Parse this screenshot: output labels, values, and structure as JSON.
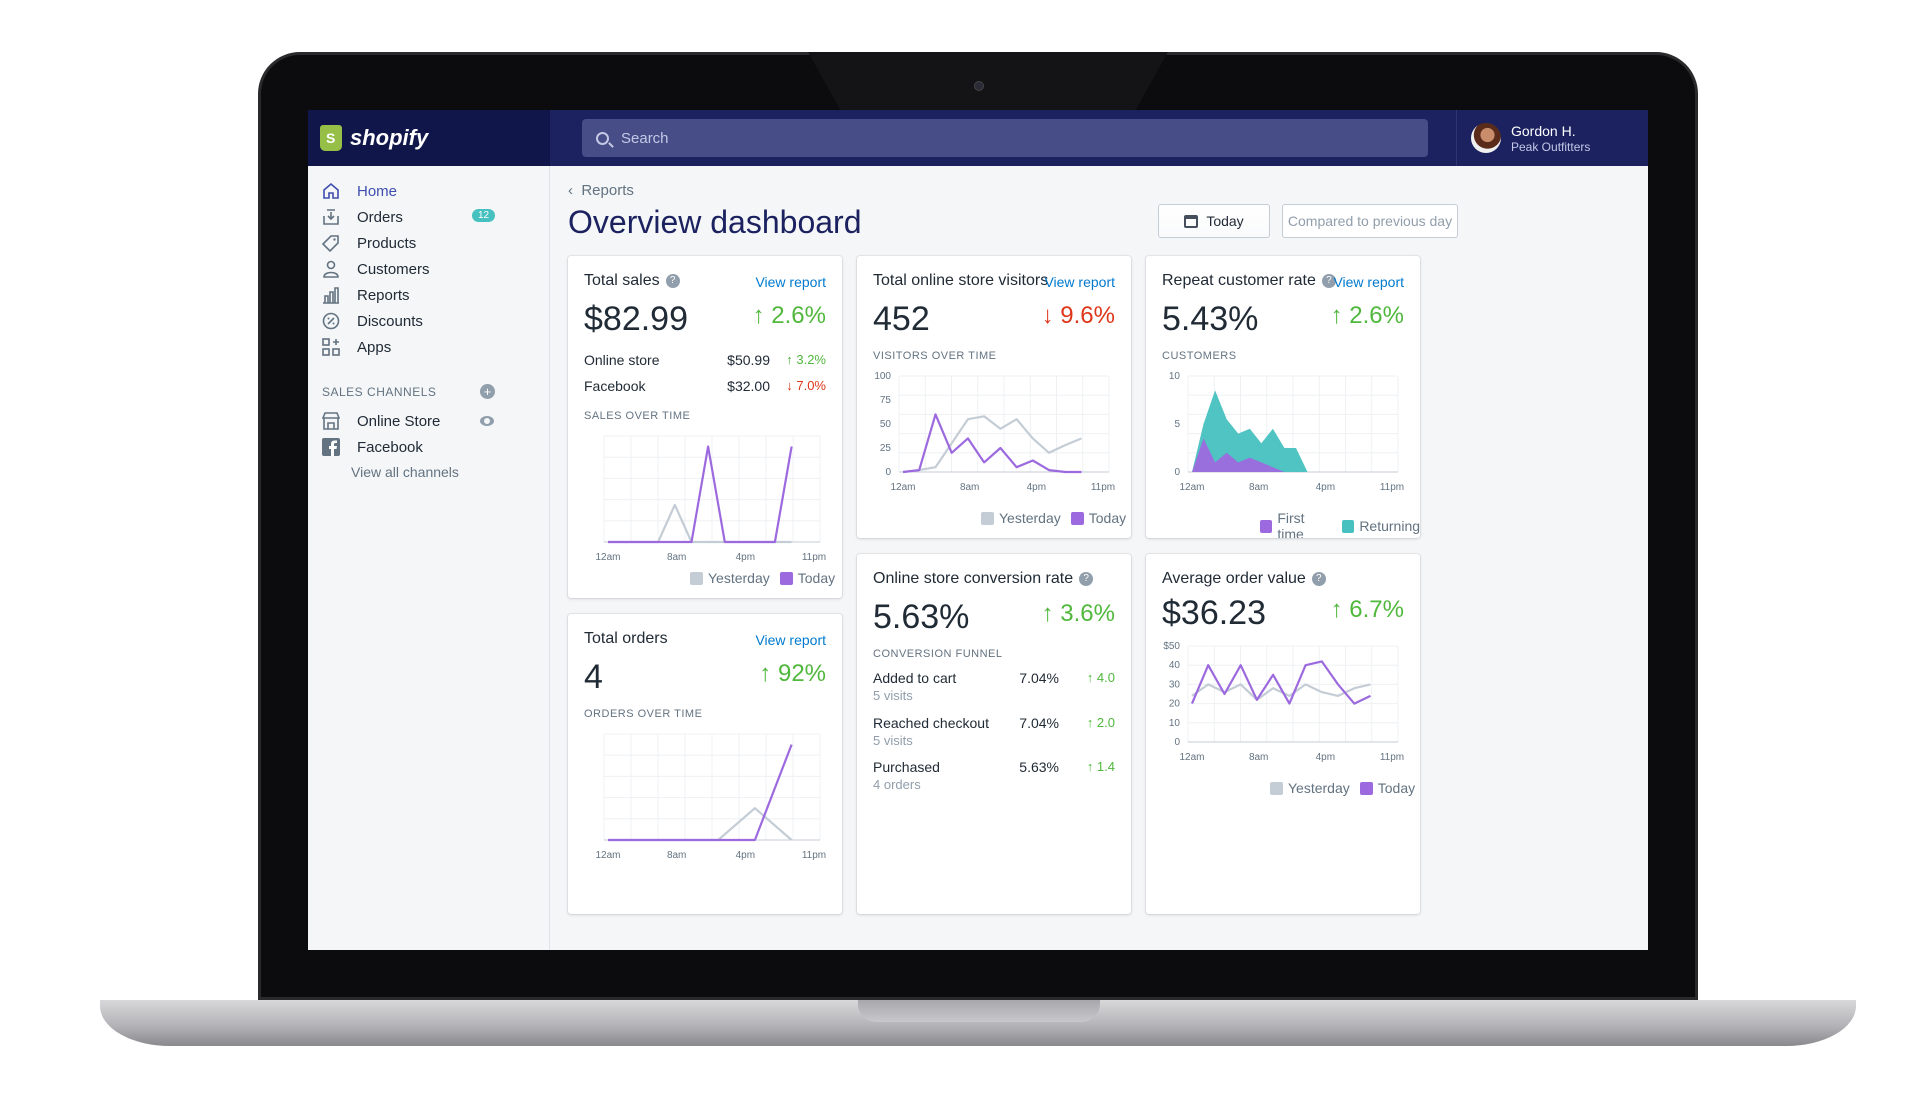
{
  "brand": {
    "name": "shopify"
  },
  "search": {
    "placeholder": "Search"
  },
  "user": {
    "name": "Gordon H.",
    "store": "Peak Outfitters"
  },
  "sidebar": {
    "items": [
      {
        "label": "Home",
        "icon": "home-icon"
      },
      {
        "label": "Orders",
        "icon": "orders-icon",
        "badge": "12"
      },
      {
        "label": "Products",
        "icon": "tag-icon"
      },
      {
        "label": "Customers",
        "icon": "person-icon"
      },
      {
        "label": "Reports",
        "icon": "bar-chart-icon"
      },
      {
        "label": "Discounts",
        "icon": "percent-icon"
      },
      {
        "label": "Apps",
        "icon": "apps-icon"
      }
    ],
    "section_title": "SALES CHANNELS",
    "channels": [
      {
        "label": "Online Store",
        "icon": "store-icon"
      },
      {
        "label": "Facebook",
        "icon": "facebook-icon"
      }
    ],
    "view_all": "View all channels"
  },
  "header": {
    "breadcrumb": "Reports",
    "title": "Overview dashboard",
    "date_button": "Today",
    "compare_button": "Compared to previous day"
  },
  "colors": {
    "today": "#9c6ade",
    "yesterday": "#c4cdd5",
    "returning": "#47c1bf",
    "up": "#50b83c",
    "down": "#de3618",
    "link": "#007ace"
  },
  "cards": {
    "total_sales": {
      "title": "Total sales",
      "link": "View report",
      "value": "$82.99",
      "delta": "↑ 2.6%",
      "rows": [
        {
          "name": "Online store",
          "value": "$50.99",
          "delta": "↑ 3.2%"
        },
        {
          "name": "Facebook",
          "value": "$32.00",
          "delta": "↓ 7.0%"
        }
      ],
      "chart_label": "SALES OVER TIME"
    },
    "visitors": {
      "title": "Total online store visitors",
      "link": "View report",
      "value": "452",
      "delta": "↓ 9.6%",
      "chart_label": "VISITORS OVER TIME"
    },
    "repeat": {
      "title": "Repeat customer rate",
      "link": "View report",
      "value": "5.43%",
      "delta": "↑ 2.6%",
      "chart_label": "CUSTOMERS"
    },
    "orders": {
      "title": "Total orders",
      "link": "View report",
      "value": "4",
      "delta": "↑ 92%",
      "chart_label": "ORDERS OVER TIME"
    },
    "conversion": {
      "title": "Online store conversion rate",
      "value": "5.63%",
      "delta": "↑ 3.6%",
      "chart_label": "CONVERSION FUNNEL",
      "rows": [
        {
          "name": "Added to cart",
          "sub": "5 visits",
          "value": "7.04%",
          "delta": "↑ 4.0"
        },
        {
          "name": "Reached checkout",
          "sub": "5 visits",
          "value": "7.04%",
          "delta": "↑ 2.0"
        },
        {
          "name": "Purchased",
          "sub": "4 orders",
          "value": "5.63%",
          "delta": "↑ 1.4"
        }
      ]
    },
    "aov": {
      "title": "Average order value",
      "value": "$36.23",
      "delta": "↑ 6.7%"
    }
  },
  "legend": {
    "yesterday": "Yesterday",
    "today": "Today",
    "first_time": "First time",
    "returning": "Returning"
  },
  "chart_data": [
    {
      "id": "sales",
      "type": "line",
      "x_ticks": [
        "12am",
        "8am",
        "4pm",
        "11pm"
      ],
      "ylim": [
        0,
        100
      ],
      "series": [
        {
          "name": "Yesterday",
          "values": [
            0,
            0,
            0,
            0,
            35,
            0,
            0,
            0,
            0,
            0,
            0,
            0
          ]
        },
        {
          "name": "Today",
          "values": [
            0,
            0,
            0,
            0,
            0,
            0,
            90,
            0,
            0,
            0,
            0,
            90
          ]
        }
      ]
    },
    {
      "id": "visitors",
      "type": "line",
      "x_ticks": [
        "12am",
        "8am",
        "4pm",
        "11pm"
      ],
      "ylim": [
        0,
        100
      ],
      "y_ticks": [
        0,
        25,
        50,
        75,
        100
      ],
      "series": [
        {
          "name": "Yesterday",
          "values": [
            0,
            2,
            5,
            30,
            55,
            58,
            45,
            55,
            35,
            20,
            28,
            35
          ]
        },
        {
          "name": "Today",
          "values": [
            0,
            2,
            60,
            20,
            35,
            10,
            25,
            5,
            12,
            2,
            0,
            0
          ]
        }
      ]
    },
    {
      "id": "customers",
      "type": "area",
      "x_ticks": [
        "12am",
        "8am",
        "4pm",
        "11pm"
      ],
      "ylim": [
        0,
        10
      ],
      "y_ticks": [
        0,
        5,
        10
      ],
      "series": [
        {
          "name": "Returning",
          "values": [
            0,
            5,
            8.5,
            5.5,
            4,
            4.5,
            3,
            4.5,
            2.5,
            2.5,
            0
          ]
        },
        {
          "name": "First time",
          "values": [
            0,
            3.5,
            1,
            2,
            1,
            1.5,
            1,
            0.5,
            0,
            0,
            0
          ]
        }
      ]
    },
    {
      "id": "orders",
      "type": "line",
      "x_ticks": [
        "12am",
        "8am",
        "4pm",
        "11pm"
      ],
      "series": [
        {
          "name": "Yesterday",
          "values": [
            0,
            0,
            0,
            0,
            30,
            0
          ]
        },
        {
          "name": "Today",
          "values": [
            0,
            0,
            0,
            0,
            0,
            90
          ]
        }
      ]
    },
    {
      "id": "aov",
      "type": "line",
      "x_ticks": [
        "12am",
        "8am",
        "4pm",
        "11pm"
      ],
      "ylim": [
        0,
        50
      ],
      "y_ticks": [
        "0",
        "10",
        "20",
        "30",
        "40",
        "$50"
      ],
      "series": [
        {
          "name": "Yesterday",
          "values": [
            24,
            30,
            26,
            30,
            22,
            28,
            24,
            30,
            26,
            24,
            28,
            30
          ]
        },
        {
          "name": "Today",
          "values": [
            20,
            40,
            25,
            40,
            22,
            35,
            20,
            40,
            42,
            30,
            20,
            24
          ]
        }
      ]
    }
  ]
}
